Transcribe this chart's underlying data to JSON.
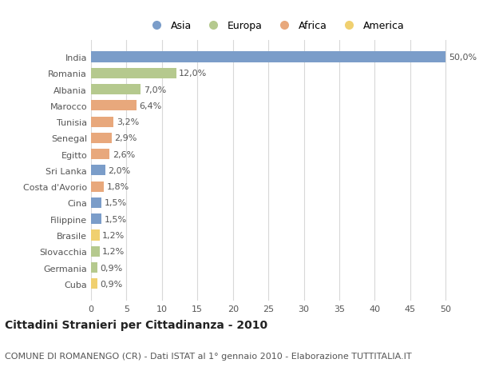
{
  "categories": [
    "India",
    "Romania",
    "Albania",
    "Marocco",
    "Tunisia",
    "Senegal",
    "Egitto",
    "Sri Lanka",
    "Costa d'Avorio",
    "Cina",
    "Filippine",
    "Brasile",
    "Slovacchia",
    "Germania",
    "Cuba"
  ],
  "values": [
    50.0,
    12.0,
    7.0,
    6.4,
    3.2,
    2.9,
    2.6,
    2.0,
    1.8,
    1.5,
    1.5,
    1.2,
    1.2,
    0.9,
    0.9
  ],
  "labels": [
    "50,0%",
    "12,0%",
    "7,0%",
    "6,4%",
    "3,2%",
    "2,9%",
    "2,6%",
    "2,0%",
    "1,8%",
    "1,5%",
    "1,5%",
    "1,2%",
    "1,2%",
    "0,9%",
    "0,9%"
  ],
  "continents": [
    "Asia",
    "Europa",
    "Europa",
    "Africa",
    "Africa",
    "Africa",
    "Africa",
    "Asia",
    "Africa",
    "Asia",
    "Asia",
    "America",
    "Europa",
    "Europa",
    "America"
  ],
  "colors": {
    "Asia": "#7b9dc9",
    "Europa": "#b5c98e",
    "Africa": "#e8a87c",
    "America": "#f0d070"
  },
  "title": "Cittadini Stranieri per Cittadinanza - 2010",
  "subtitle": "COMUNE DI ROMANENGO (CR) - Dati ISTAT al 1° gennaio 2010 - Elaborazione TUTTITALIA.IT",
  "xlim": [
    0,
    52
  ],
  "xticks": [
    0,
    5,
    10,
    15,
    20,
    25,
    30,
    35,
    40,
    45,
    50
  ],
  "bg_color": "#ffffff",
  "grid_color": "#d8d8d8",
  "bar_height": 0.65,
  "title_fontsize": 10,
  "subtitle_fontsize": 8,
  "tick_fontsize": 8,
  "label_fontsize": 8,
  "legend_fontsize": 9
}
